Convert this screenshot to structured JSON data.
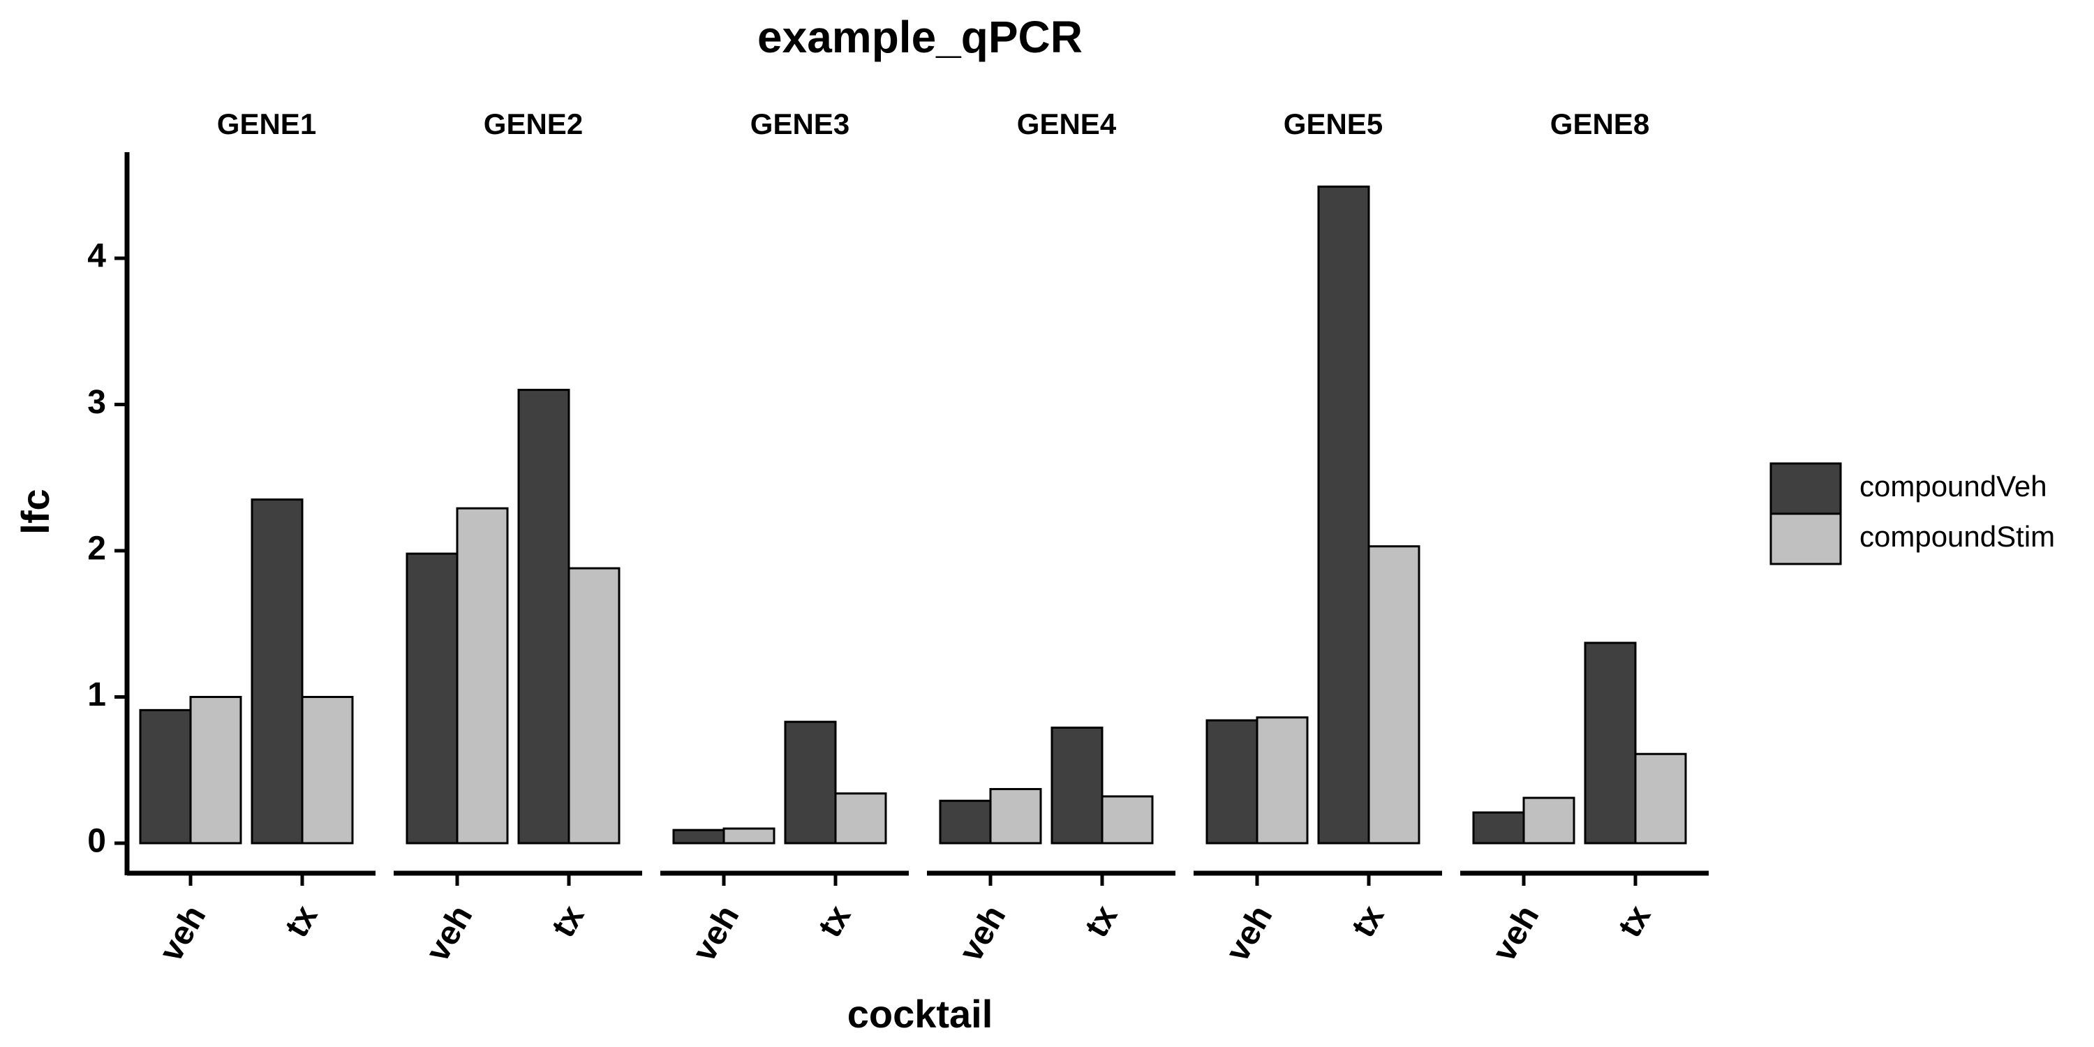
{
  "chart_data": {
    "type": "bar",
    "title": "example_qPCR",
    "xlabel": "cocktail",
    "ylabel": "lfc",
    "ylim": [
      0,
      4.6
    ],
    "yticks": [
      0,
      1,
      2,
      3,
      4
    ],
    "categories": [
      "veh",
      "tx"
    ],
    "facets": [
      {
        "name": "GENE1",
        "series": [
          {
            "name": "compoundVeh",
            "values": [
              0.91,
              2.35
            ]
          },
          {
            "name": "compoundStim",
            "values": [
              1.0,
              1.0
            ]
          }
        ]
      },
      {
        "name": "GENE2",
        "series": [
          {
            "name": "compoundVeh",
            "values": [
              1.98,
              3.1
            ]
          },
          {
            "name": "compoundStim",
            "values": [
              2.29,
              1.88
            ]
          }
        ]
      },
      {
        "name": "GENE3",
        "series": [
          {
            "name": "compoundVeh",
            "values": [
              0.09,
              0.83
            ]
          },
          {
            "name": "compoundStim",
            "values": [
              0.1,
              0.34
            ]
          }
        ]
      },
      {
        "name": "GENE4",
        "series": [
          {
            "name": "compoundVeh",
            "values": [
              0.29,
              0.79
            ]
          },
          {
            "name": "compoundStim",
            "values": [
              0.37,
              0.32
            ]
          }
        ]
      },
      {
        "name": "GENE5",
        "series": [
          {
            "name": "compoundVeh",
            "values": [
              0.84,
              4.49
            ]
          },
          {
            "name": "compoundStim",
            "values": [
              0.86,
              2.03
            ]
          }
        ]
      },
      {
        "name": "GENE8",
        "series": [
          {
            "name": "compoundVeh",
            "values": [
              0.21,
              1.37
            ]
          },
          {
            "name": "compoundStim",
            "values": [
              0.31,
              0.61
            ]
          }
        ]
      }
    ],
    "legend": {
      "position": "right",
      "entries": [
        {
          "name": "compoundVeh",
          "color": "#404040"
        },
        {
          "name": "compoundStim",
          "color": "#c0c0c0"
        }
      ]
    },
    "grid": false
  }
}
